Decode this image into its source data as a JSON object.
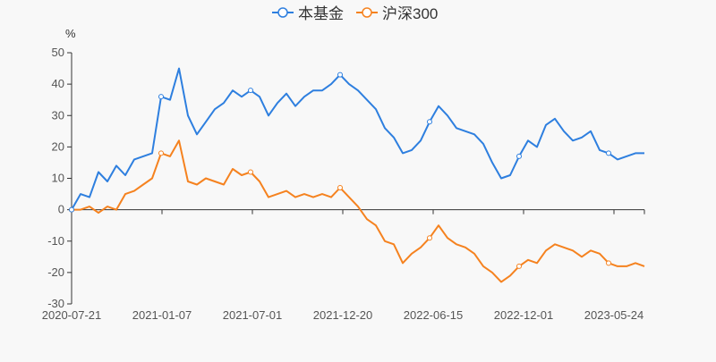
{
  "chart_data": {
    "type": "line",
    "title": "",
    "ylabel": "%",
    "xlabel": "",
    "ylim": [
      -30,
      50
    ],
    "yticks": [
      50,
      40,
      30,
      20,
      10,
      0,
      -10,
      -20,
      -30
    ],
    "grid": false,
    "legend_position": "top-center",
    "xticks": [
      {
        "label": "2020-07-21",
        "index": 0
      },
      {
        "label": "2021-01-07",
        "index": 10.1
      },
      {
        "label": "2021-07-01",
        "index": 20.2
      },
      {
        "label": "2021-12-20",
        "index": 30.3
      },
      {
        "label": "2022-06-15",
        "index": 40.4
      },
      {
        "label": "2022-12-01",
        "index": 50.5
      },
      {
        "label": "2023-05-24",
        "index": 60.6
      }
    ],
    "x_range": [
      0,
      64
    ],
    "series": [
      {
        "name": "本基金",
        "color": "#2e7fdf",
        "values": [
          0,
          5,
          4,
          12,
          9,
          14,
          11,
          16,
          17,
          18,
          36,
          35,
          45,
          30,
          24,
          28,
          32,
          34,
          38,
          36,
          38,
          36,
          30,
          34,
          37,
          33,
          36,
          38,
          38,
          40,
          43,
          40,
          38,
          35,
          32,
          26,
          23,
          18,
          19,
          22,
          28,
          33,
          30,
          26,
          25,
          24,
          21,
          15,
          10,
          11,
          17,
          22,
          20,
          27,
          29,
          25,
          22,
          23,
          25,
          19,
          18,
          16,
          17,
          18,
          18
        ]
      },
      {
        "name": "沪深300",
        "color": "#f5821f",
        "values": [
          0,
          0,
          1,
          -1,
          1,
          0,
          5,
          6,
          8,
          10,
          18,
          17,
          22,
          9,
          8,
          10,
          9,
          8,
          13,
          11,
          12,
          9,
          4,
          5,
          6,
          4,
          5,
          4,
          5,
          4,
          7,
          4,
          1,
          -3,
          -5,
          -10,
          -11,
          -17,
          -14,
          -12,
          -9,
          -5,
          -9,
          -11,
          -12,
          -14,
          -18,
          -20,
          -23,
          -21,
          -18,
          -16,
          -17,
          -13,
          -11,
          -12,
          -13,
          -15,
          -13,
          -14,
          -17,
          -18,
          -18,
          -17,
          -18
        ]
      }
    ]
  }
}
